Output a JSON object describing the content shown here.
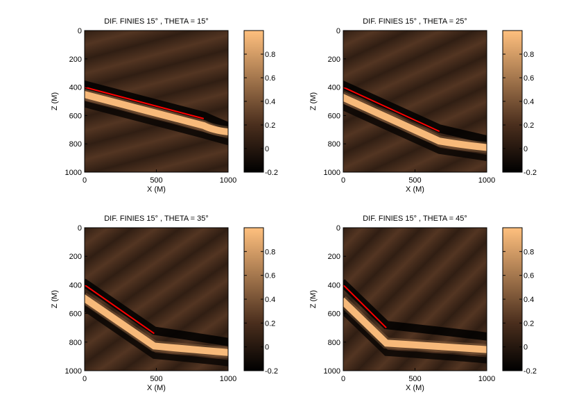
{
  "figure": {
    "background": "#ffffff"
  },
  "colormap": {
    "name": "copper",
    "stops": [
      {
        "v": -0.2,
        "color": "#000000"
      },
      {
        "v": 0.2,
        "color": "#4a2e1d"
      },
      {
        "v": 1.0,
        "color": "#ffc07e"
      }
    ]
  },
  "chart_data": [
    {
      "type": "heatmap",
      "title": "DIF. FINIES 15° , THETA = 15°",
      "xlabel": "X (M)",
      "ylabel": "Z (M)",
      "xlim": [
        0,
        1000
      ],
      "ylim": [
        0,
        1000
      ],
      "y_reversed": true,
      "x_ticks": [
        "0",
        "500",
        "1000"
      ],
      "y_ticks": [
        "0",
        "200",
        "400",
        "600",
        "800",
        "1000"
      ],
      "theta_deg": 15,
      "reflector_line": {
        "x": [
          0,
          830
        ],
        "z": [
          400,
          622
        ],
        "color": "#ff0000"
      },
      "colorbar": {
        "range": [
          -0.2,
          1.0
        ],
        "ticks": [
          "-0.2",
          "0",
          "0.2",
          "0.4",
          "0.6",
          "0.8"
        ]
      }
    },
    {
      "type": "heatmap",
      "title": "DIF. FINIES 15° , THETA = 25°",
      "xlabel": "X (M)",
      "ylabel": "Z (M)",
      "xlim": [
        0,
        1000
      ],
      "ylim": [
        0,
        1000
      ],
      "y_reversed": true,
      "x_ticks": [
        "0",
        "500",
        "1000"
      ],
      "y_ticks": [
        "0",
        "200",
        "400",
        "600",
        "800",
        "1000"
      ],
      "theta_deg": 25,
      "reflector_line": {
        "x": [
          0,
          670
        ],
        "z": [
          400,
          712
        ],
        "color": "#ff0000"
      },
      "colorbar": {
        "range": [
          -0.2,
          1.0
        ],
        "ticks": [
          "-0.2",
          "0",
          "0.2",
          "0.4",
          "0.6",
          "0.8"
        ]
      }
    },
    {
      "type": "heatmap",
      "title": "DIF. FINIES 15° , THETA = 35°",
      "xlabel": "X (M)",
      "ylabel": "Z (M)",
      "xlim": [
        0,
        1000
      ],
      "ylim": [
        0,
        1000
      ],
      "y_reversed": true,
      "x_ticks": [
        "0",
        "500",
        "1000"
      ],
      "y_ticks": [
        "0",
        "200",
        "400",
        "600",
        "800",
        "1000"
      ],
      "theta_deg": 35,
      "reflector_line": {
        "x": [
          0,
          485
        ],
        "z": [
          400,
          740
        ],
        "color": "#ff0000"
      },
      "colorbar": {
        "range": [
          -0.2,
          1.0
        ],
        "ticks": [
          "-0.2",
          "0",
          "0.2",
          "0.4",
          "0.6",
          "0.8"
        ]
      }
    },
    {
      "type": "heatmap",
      "title": "DIF. FINIES 15° , THETA = 45°",
      "xlabel": "X (M)",
      "ylabel": "Z (M)",
      "xlim": [
        0,
        1000
      ],
      "ylim": [
        0,
        1000
      ],
      "y_reversed": true,
      "x_ticks": [
        "0",
        "500",
        "1000"
      ],
      "y_ticks": [
        "0",
        "200",
        "400",
        "600",
        "800",
        "1000"
      ],
      "theta_deg": 45,
      "reflector_line": {
        "x": [
          0,
          300
        ],
        "z": [
          400,
          700
        ],
        "color": "#ff0000"
      },
      "colorbar": {
        "range": [
          -0.2,
          1.0
        ],
        "ticks": [
          "-0.2",
          "0",
          "0.2",
          "0.4",
          "0.6",
          "0.8"
        ]
      }
    }
  ]
}
